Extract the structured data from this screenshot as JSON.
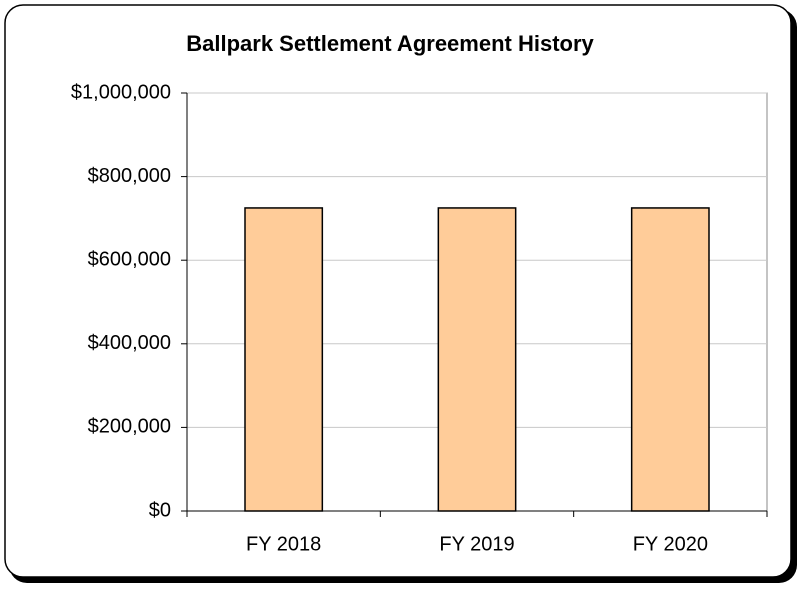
{
  "chart_data": {
    "type": "bar",
    "title": "Ballpark Settlement Agreement History",
    "categories": [
      "FY 2018",
      "FY 2019",
      "FY 2020"
    ],
    "values": [
      725000,
      725000,
      725000
    ],
    "color": "#ffcc99",
    "ylim": [
      0,
      1000000
    ],
    "yticks": [
      {
        "value": 0,
        "label": "$0"
      },
      {
        "value": 200000,
        "label": "$200,000"
      },
      {
        "value": 400000,
        "label": "$400,000"
      },
      {
        "value": 600000,
        "label": "$600,000"
      },
      {
        "value": 800000,
        "label": "$800,000"
      },
      {
        "value": 1000000,
        "label": "$1,000,000"
      }
    ],
    "grid": true
  }
}
